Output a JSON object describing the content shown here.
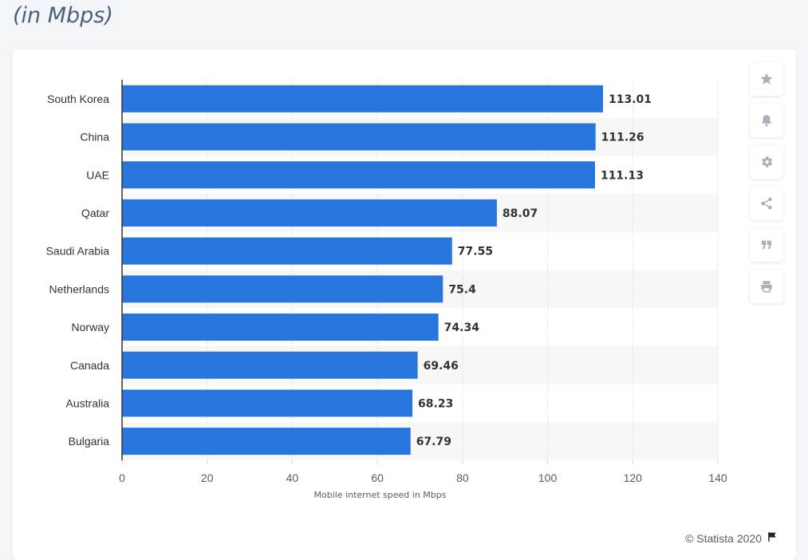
{
  "header": {
    "subtitle": "(in Mbps)"
  },
  "toolbar": {
    "icons": [
      "star-icon",
      "bell-icon",
      "gear-icon",
      "share-icon",
      "quote-icon",
      "print-icon"
    ]
  },
  "credit": {
    "text": "© Statista 2020"
  },
  "colors": {
    "bar": "#2876dd",
    "band": "#f7f7f7",
    "grid": "#cfd3d8",
    "axis": "#333333",
    "label": "#333333",
    "value": "#333333"
  },
  "chart_data": {
    "type": "bar",
    "orientation": "horizontal",
    "categories": [
      "South Korea",
      "China",
      "UAE",
      "Qatar",
      "Saudi Arabia",
      "Netherlands",
      "Norway",
      "Canada",
      "Australia",
      "Bulgaria"
    ],
    "values": [
      113.01,
      111.26,
      111.13,
      88.07,
      77.55,
      75.4,
      74.34,
      69.46,
      68.23,
      67.79
    ],
    "value_labels": [
      "113.01",
      "111.26",
      "111.13",
      "88.07",
      "77.55",
      "75.4",
      "74.34",
      "69.46",
      "68.23",
      "67.79"
    ],
    "title": "",
    "xlabel": "Mobile internet speed in Mbps",
    "ylabel": "",
    "xlim": [
      0,
      140
    ],
    "ticks": [
      0,
      20,
      40,
      60,
      80,
      100,
      120,
      140
    ],
    "tick_labels": [
      "0",
      "20",
      "40",
      "60",
      "80",
      "100",
      "120",
      "140"
    ],
    "grid": true
  }
}
